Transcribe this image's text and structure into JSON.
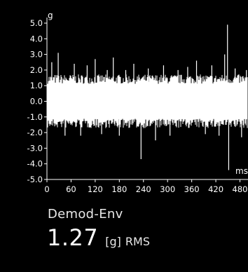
{
  "chart_data": {
    "type": "line",
    "xlabel": "ms",
    "ylabel": "g",
    "xlim": [
      0,
      500
    ],
    "ylim": [
      -5.0,
      5.0
    ],
    "x_ticks": [
      "0",
      "60",
      "120",
      "180",
      "240",
      "300",
      "360",
      "420",
      "480"
    ],
    "y_ticks": [
      "5.0",
      "4.0",
      "3.0",
      "2.0",
      "1.0",
      "0.0",
      "-1.0",
      "-2.0",
      "-3.0",
      "-4.0",
      "-5.0"
    ],
    "series": [
      {
        "peaks": [
          {
            "x": 12,
            "y": 2.5
          },
          {
            "x": 28,
            "y": 3.1
          },
          {
            "x": 45,
            "y": -2.2
          },
          {
            "x": 68,
            "y": 2.4
          },
          {
            "x": 84,
            "y": -2.2
          },
          {
            "x": 100,
            "y": 2.3
          },
          {
            "x": 120,
            "y": 2.7
          },
          {
            "x": 136,
            "y": -2.1
          },
          {
            "x": 150,
            "y": 2.0
          },
          {
            "x": 165,
            "y": 2.8
          },
          {
            "x": 180,
            "y": -2.2
          },
          {
            "x": 196,
            "y": 2.0
          },
          {
            "x": 216,
            "y": 2.4
          },
          {
            "x": 234,
            "y": -3.7
          },
          {
            "x": 252,
            "y": 2.1
          },
          {
            "x": 270,
            "y": -2.5
          },
          {
            "x": 290,
            "y": 2.3
          },
          {
            "x": 306,
            "y": -2.2
          },
          {
            "x": 326,
            "y": 2.0
          },
          {
            "x": 350,
            "y": 2.2
          },
          {
            "x": 372,
            "y": 2.6
          },
          {
            "x": 394,
            "y": -2.1
          },
          {
            "x": 410,
            "y": 2.3
          },
          {
            "x": 428,
            "y": -2.2
          },
          {
            "x": 442,
            "y": 3.0
          },
          {
            "x": 449,
            "y": 4.9
          },
          {
            "x": 452,
            "y": -4.4
          },
          {
            "x": 468,
            "y": 2.1
          },
          {
            "x": 484,
            "y": -2.3
          },
          {
            "x": 496,
            "y": 2.0
          }
        ],
        "band_typical": 1.3,
        "band_spread": 0.6
      }
    ]
  },
  "readout": {
    "label": "Demod-Env",
    "value": "1.27",
    "unit": "[g]",
    "stat": "RMS"
  }
}
